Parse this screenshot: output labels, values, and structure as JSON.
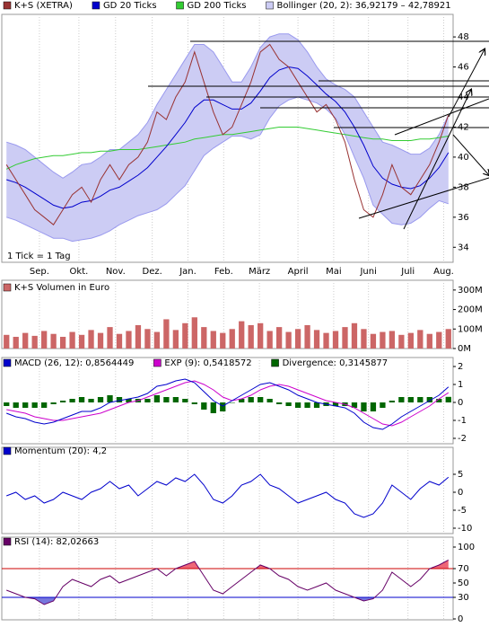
{
  "chart_data": [
    {
      "type": "line",
      "annotation": "1 Tick = 1 Tag",
      "xlim": [
        -0.5,
        47.5
      ],
      "xticks": [
        {
          "value": 3.5,
          "label": "Sep."
        },
        {
          "value": 7.7,
          "label": "Okt."
        },
        {
          "value": 11.6,
          "label": "Nov."
        },
        {
          "value": 15.5,
          "label": "Dez."
        },
        {
          "value": 19.3,
          "label": "Jan."
        },
        {
          "value": 23.1,
          "label": "Feb."
        },
        {
          "value": 26.9,
          "label": "März"
        },
        {
          "value": 31,
          "label": "April"
        },
        {
          "value": 34.8,
          "label": "Mai"
        },
        {
          "value": 38.5,
          "label": "Juni"
        },
        {
          "value": 42.7,
          "label": "Juli"
        },
        {
          "value": 46.5,
          "label": "Aug."
        }
      ],
      "ylim": [
        33,
        49.5
      ],
      "yticks": [
        34,
        36,
        38,
        40,
        42,
        44,
        46,
        48
      ],
      "series": [
        {
          "name": "Bollinger (20, 2): 36,92179 – 42,78921",
          "color": "#9999ee",
          "fill": "#ccccf4",
          "values": [
            41,
            40.8,
            40.5,
            40,
            39.5,
            39,
            38.6,
            39,
            39.5,
            39.6,
            40,
            40.5,
            40.5,
            41,
            41.5,
            42.3,
            43.5,
            44.5,
            45.5,
            46.5,
            47.5,
            47.5,
            47,
            46,
            45,
            45,
            46,
            47.3,
            48,
            48.2,
            48.2,
            47.8,
            47,
            46,
            45.2,
            44.8,
            44.5,
            44,
            43,
            42,
            41,
            40.8,
            40.5,
            40.2,
            40.2,
            40.6,
            41.5,
            42.8
          ],
          "lower_values": [
            36,
            35.8,
            35.5,
            35.2,
            34.9,
            34.6,
            34.6,
            34.4,
            34.5,
            34.6,
            34.8,
            35.1,
            35.5,
            35.8,
            36.1,
            36.3,
            36.5,
            36.9,
            37.5,
            38.1,
            39.1,
            40.1,
            40.6,
            41,
            41.4,
            41.4,
            41.2,
            41.5,
            42.6,
            43.4,
            43.8,
            44,
            43.8,
            43.6,
            43.2,
            42.6,
            41.5,
            40,
            38.6,
            36.8,
            36.2,
            35.6,
            35.5,
            35.6,
            36,
            36.6,
            37.1,
            36.9
          ]
        },
        {
          "name": "GD 200 Ticks",
          "color": "#33cc33",
          "values": [
            39.2,
            39.5,
            39.7,
            39.9,
            40,
            40.1,
            40.1,
            40.2,
            40.3,
            40.3,
            40.4,
            40.4,
            40.5,
            40.5,
            40.5,
            40.6,
            40.7,
            40.8,
            40.9,
            41,
            41.2,
            41.3,
            41.4,
            41.5,
            41.5,
            41.6,
            41.7,
            41.8,
            41.9,
            42,
            42,
            42,
            41.9,
            41.8,
            41.7,
            41.6,
            41.5,
            41.4,
            41.3,
            41.2,
            41.2,
            41.1,
            41.1,
            41.1,
            41.2,
            41.2,
            41.3,
            41.4
          ]
        },
        {
          "name": "GD 20 Ticks",
          "color": "#0000cc",
          "values": [
            38.5,
            38.3,
            38,
            37.6,
            37.2,
            36.8,
            36.6,
            36.7,
            37,
            37.1,
            37.4,
            37.8,
            38,
            38.4,
            38.8,
            39.3,
            40,
            40.7,
            41.5,
            42.3,
            43.3,
            43.8,
            43.8,
            43.5,
            43.2,
            43.2,
            43.6,
            44.4,
            45.3,
            45.8,
            46,
            45.9,
            45.4,
            44.8,
            44.2,
            43.7,
            43,
            42,
            40.8,
            39.4,
            38.6,
            38.2,
            38,
            37.9,
            38.1,
            38.6,
            39.3,
            40.3
          ]
        },
        {
          "name": "K+S (XETRA)",
          "color": "#993333",
          "values": [
            39.5,
            38.5,
            37.5,
            36.5,
            36,
            35.5,
            36.5,
            37.5,
            38,
            37,
            38.5,
            39.5,
            38.5,
            39.5,
            40,
            41,
            43,
            42.5,
            44,
            45,
            47,
            45,
            43,
            41.5,
            42,
            43.5,
            45,
            47,
            47.5,
            46.5,
            46,
            45,
            44,
            43,
            43.5,
            42.5,
            41,
            38.5,
            36.5,
            36,
            37.5,
            39.5,
            38,
            37.5,
            38.5,
            39.5,
            41,
            42.8
          ]
        }
      ],
      "legend_order": [
        3,
        2,
        1,
        0
      ]
    },
    {
      "type": "bar",
      "ylim": [
        0,
        350
      ],
      "yticks": [
        {
          "value": 0,
          "label": "0M"
        },
        {
          "value": 100,
          "label": "100M"
        },
        {
          "value": 200,
          "label": "200M"
        },
        {
          "value": 300,
          "label": "300M"
        }
      ],
      "series": [
        {
          "name": "K+S Volumen in Euro",
          "color": "#cc6666",
          "values": [
            70,
            60,
            80,
            65,
            90,
            75,
            60,
            85,
            70,
            95,
            80,
            110,
            75,
            90,
            120,
            100,
            85,
            150,
            95,
            130,
            160,
            110,
            90,
            80,
            100,
            140,
            120,
            130,
            90,
            110,
            85,
            100,
            120,
            95,
            80,
            90,
            110,
            130,
            100,
            75,
            85,
            90,
            70,
            80,
            95,
            75,
            85,
            100
          ]
        }
      ]
    },
    {
      "type": "line",
      "ylim": [
        -2.3,
        2.5
      ],
      "yticks": [
        2,
        1,
        0,
        -1,
        -2
      ],
      "series": [
        {
          "name": "Divergence: 0,3145877",
          "color": "#006600",
          "type": "bar",
          "values": [
            -0.2,
            -0.3,
            -0.3,
            -0.3,
            -0.3,
            -0.1,
            0.1,
            0.2,
            0.3,
            0.2,
            0.3,
            0.4,
            0.3,
            0.2,
            0.2,
            0.2,
            0.4,
            0.3,
            0.3,
            0.2,
            -0.1,
            -0.4,
            -0.6,
            -0.5,
            0,
            0.2,
            0.3,
            0.3,
            0.2,
            -0.1,
            -0.2,
            -0.3,
            -0.3,
            -0.3,
            -0.2,
            -0.2,
            -0.2,
            -0.3,
            -0.5,
            -0.5,
            -0.3,
            0.1,
            0.3,
            0.3,
            0.3,
            0.3,
            0.2,
            0.31
          ]
        },
        {
          "name": "EXP (9): 0,5418572",
          "color": "#cc00cc",
          "values": [
            -0.4,
            -0.5,
            -0.6,
            -0.8,
            -0.9,
            -1,
            -1,
            -0.9,
            -0.8,
            -0.7,
            -0.6,
            -0.4,
            -0.2,
            0,
            0.1,
            0.3,
            0.5,
            0.7,
            0.9,
            1.1,
            1.2,
            1,
            0.7,
            0.3,
            0.1,
            0.2,
            0.4,
            0.7,
            0.9,
            1,
            0.9,
            0.7,
            0.5,
            0.3,
            0.1,
            0,
            -0.1,
            -0.3,
            -0.6,
            -0.9,
            -1.2,
            -1.3,
            -1.1,
            -0.8,
            -0.5,
            -0.2,
            0.2,
            0.54
          ]
        },
        {
          "name": "MACD (26, 12): 0,8564449",
          "color": "#0000cc",
          "values": [
            -0.6,
            -0.8,
            -0.9,
            -1.1,
            -1.2,
            -1.1,
            -0.9,
            -0.7,
            -0.5,
            -0.5,
            -0.3,
            0,
            0.1,
            0.2,
            0.3,
            0.5,
            0.9,
            1,
            1.2,
            1.3,
            1.1,
            0.6,
            0.1,
            -0.2,
            0.1,
            0.4,
            0.7,
            1,
            1.1,
            0.9,
            0.7,
            0.4,
            0.2,
            0,
            -0.1,
            -0.2,
            -0.3,
            -0.6,
            -1.1,
            -1.4,
            -1.5,
            -1.2,
            -0.8,
            -0.5,
            -0.2,
            0.1,
            0.4,
            0.86
          ]
        }
      ],
      "legend_order": [
        2,
        1,
        0
      ]
    },
    {
      "type": "line",
      "ylim": [
        -11.5,
        12.5
      ],
      "yticks": [
        5,
        0,
        -5,
        -10
      ],
      "series": [
        {
          "name": "Momentum (20): 4,2",
          "color": "#0000cc",
          "values": [
            -1,
            0,
            -2,
            -1,
            -3,
            -2,
            0,
            -1,
            -2,
            0,
            1,
            3,
            1,
            2,
            -1,
            1,
            3,
            2,
            4,
            3,
            5,
            2,
            -2,
            -3,
            -1,
            2,
            3,
            5,
            2,
            1,
            -1,
            -3,
            -2,
            -1,
            0,
            -2,
            -3,
            -6,
            -7,
            -6,
            -3,
            2,
            0,
            -2,
            1,
            3,
            2,
            4.2
          ]
        }
      ]
    },
    {
      "type": "line",
      "ylim": [
        -1.25,
        113.75
      ],
      "yticks": [
        100,
        70,
        50,
        30,
        0
      ],
      "reference_lines": [
        {
          "value": 70,
          "color": "#cc0000",
          "fill": "#ee6677"
        },
        {
          "value": 30,
          "color": "#0000cc",
          "fill": "#7777dd"
        }
      ],
      "series": [
        {
          "name": "RSI (14): 82,02663",
          "color": "#660066",
          "values": [
            40,
            35,
            30,
            28,
            20,
            25,
            45,
            55,
            50,
            45,
            55,
            60,
            50,
            55,
            60,
            65,
            70,
            60,
            70,
            75,
            80,
            60,
            40,
            35,
            45,
            55,
            65,
            75,
            70,
            60,
            55,
            45,
            40,
            45,
            50,
            40,
            35,
            30,
            25,
            28,
            40,
            65,
            55,
            45,
            55,
            70,
            75,
            82
          ]
        }
      ]
    }
  ]
}
